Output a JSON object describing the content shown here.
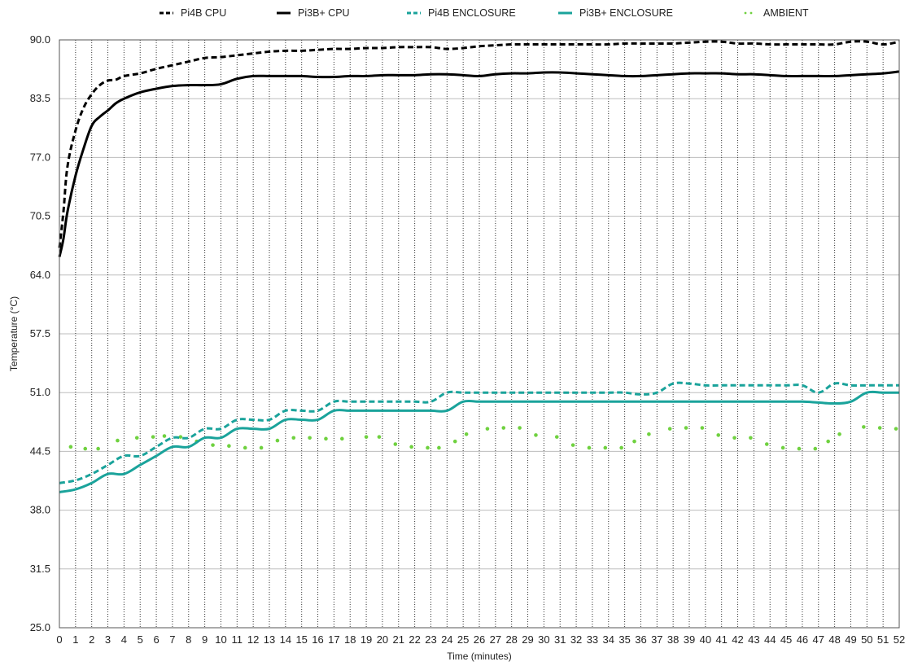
{
  "chart_data": {
    "type": "line",
    "title": "",
    "xlabel": "Time (minutes)",
    "ylabel": "Temperature (°C)",
    "xlim": [
      0,
      52
    ],
    "ylim": [
      25,
      90
    ],
    "x_ticks": [
      0,
      1,
      2,
      3,
      4,
      5,
      6,
      7,
      8,
      9,
      10,
      11,
      12,
      13,
      14,
      15,
      16,
      17,
      18,
      19,
      20,
      21,
      22,
      23,
      24,
      25,
      26,
      27,
      28,
      29,
      30,
      31,
      32,
      33,
      34,
      35,
      36,
      37,
      38,
      39,
      40,
      41,
      42,
      43,
      44,
      45,
      46,
      47,
      48,
      49,
      50,
      51,
      52
    ],
    "y_ticks": [
      "25.0",
      "31.5",
      "38.0",
      "44.5",
      "51.0",
      "57.5",
      "64.0",
      "70.5",
      "77.0",
      "83.5",
      "90.0"
    ],
    "grid": {
      "horizontal": "solid",
      "vertical": "dotted"
    },
    "legend_position": "top",
    "series": [
      {
        "name": "Pi4B CPU",
        "color": "#000000",
        "style": "dashed",
        "x": [
          0,
          0.25,
          0.5,
          1,
          1.5,
          2,
          2.5,
          3,
          3.5,
          4,
          5,
          6,
          7,
          8,
          9,
          10,
          11,
          12,
          13,
          14,
          15,
          16,
          17,
          18,
          19,
          20,
          21,
          22,
          23,
          24,
          25,
          26,
          27,
          28,
          29,
          30,
          31,
          32,
          33,
          34,
          35,
          36,
          37,
          38,
          39,
          40,
          41,
          42,
          43,
          44,
          45,
          46,
          47,
          48,
          49,
          50,
          51,
          52
        ],
        "y": [
          67,
          71,
          76,
          80,
          82.5,
          84,
          85,
          85.5,
          85.6,
          86,
          86.3,
          86.8,
          87.2,
          87.6,
          88,
          88.1,
          88.3,
          88.5,
          88.7,
          88.8,
          88.8,
          88.9,
          89,
          89,
          89.1,
          89.1,
          89.2,
          89.2,
          89.2,
          89,
          89.1,
          89.3,
          89.4,
          89.5,
          89.5,
          89.5,
          89.5,
          89.5,
          89.5,
          89.5,
          89.6,
          89.6,
          89.6,
          89.6,
          89.7,
          89.8,
          89.8,
          89.6,
          89.6,
          89.5,
          89.5,
          89.5,
          89.5,
          89.5,
          89.8,
          89.8,
          89.5,
          89.8
        ]
      },
      {
        "name": "Pi3B+ CPU",
        "color": "#000000",
        "style": "solid",
        "x": [
          0,
          0.25,
          0.5,
          1,
          1.5,
          2,
          2.5,
          3,
          3.5,
          4,
          5,
          6,
          7,
          8,
          9,
          10,
          11,
          12,
          13,
          14,
          15,
          16,
          17,
          18,
          19,
          20,
          21,
          22,
          23,
          24,
          25,
          26,
          27,
          28,
          29,
          30,
          31,
          32,
          33,
          34,
          35,
          36,
          37,
          38,
          39,
          40,
          41,
          42,
          43,
          44,
          45,
          46,
          47,
          48,
          49,
          50,
          51,
          52
        ],
        "y": [
          66,
          68,
          71,
          75,
          78,
          80.5,
          81.5,
          82.2,
          83,
          83.5,
          84.2,
          84.6,
          84.9,
          85,
          85,
          85.1,
          85.7,
          86,
          86,
          86,
          86,
          85.9,
          85.9,
          86,
          86,
          86.1,
          86.1,
          86.1,
          86.2,
          86.2,
          86.1,
          86,
          86.2,
          86.3,
          86.3,
          86.4,
          86.4,
          86.3,
          86.2,
          86.1,
          86,
          86,
          86.1,
          86.2,
          86.3,
          86.3,
          86.3,
          86.2,
          86.2,
          86.1,
          86,
          86,
          86,
          86,
          86.1,
          86.2,
          86.3,
          86.5
        ]
      },
      {
        "name": "Pi4B ENCLOSURE",
        "color": "#1aa39b",
        "style": "dashed",
        "x": [
          0,
          1,
          2,
          3,
          4,
          5,
          6,
          7,
          8,
          9,
          10,
          11,
          12,
          13,
          14,
          15,
          16,
          17,
          18,
          19,
          20,
          21,
          22,
          23,
          24,
          25,
          26,
          27,
          28,
          29,
          30,
          31,
          32,
          33,
          34,
          35,
          36,
          37,
          38,
          39,
          40,
          41,
          42,
          43,
          44,
          45,
          46,
          47,
          48,
          49,
          50,
          51,
          52
        ],
        "y": [
          41,
          41.3,
          42,
          43,
          44,
          44,
          45,
          46,
          46,
          47,
          47,
          48,
          48,
          48,
          49,
          49,
          49,
          50,
          50,
          50,
          50,
          50,
          50,
          50,
          51,
          51,
          51,
          51,
          51,
          51,
          51,
          51,
          51,
          51,
          51,
          51,
          50.8,
          51,
          52,
          52,
          51.8,
          51.8,
          51.8,
          51.8,
          51.8,
          51.8,
          51.8,
          51,
          52,
          51.8,
          51.8,
          51.8,
          51.8
        ]
      },
      {
        "name": "Pi3B+ ENCLOSURE",
        "color": "#1aa39b",
        "style": "solid",
        "x": [
          0,
          1,
          2,
          3,
          4,
          5,
          6,
          7,
          8,
          9,
          10,
          11,
          12,
          13,
          14,
          15,
          16,
          17,
          18,
          19,
          20,
          21,
          22,
          23,
          24,
          25,
          26,
          27,
          28,
          29,
          30,
          31,
          32,
          33,
          34,
          35,
          36,
          37,
          38,
          39,
          40,
          41,
          42,
          43,
          44,
          45,
          46,
          47,
          48,
          49,
          50,
          51,
          52
        ],
        "y": [
          40,
          40.3,
          41,
          42,
          42,
          43,
          44,
          45,
          45,
          46,
          46,
          47,
          47,
          47,
          48,
          48,
          48,
          49,
          49,
          49,
          49,
          49,
          49,
          49,
          49,
          50,
          50,
          50,
          50,
          50,
          50,
          50,
          50,
          50,
          50,
          50,
          50,
          50,
          50,
          50,
          50,
          50,
          50,
          50,
          50,
          50,
          50,
          49.9,
          49.8,
          50,
          51,
          51,
          51
        ]
      },
      {
        "name": "AMBIENT",
        "color": "#6fd13f",
        "style": "dotted",
        "x": [
          0.7,
          1.6,
          2.4,
          3.6,
          4.8,
          5.8,
          6.5,
          7.5,
          8.5,
          9.5,
          10.5,
          11.5,
          12.5,
          13.5,
          14.5,
          15.5,
          16.5,
          17.5,
          19,
          19.8,
          20.8,
          21.8,
          22.8,
          23.5,
          24.5,
          25.2,
          26.5,
          27.5,
          28.5,
          29.5,
          30.8,
          31.8,
          32.8,
          33.8,
          34.8,
          35.6,
          36.5,
          37.8,
          38.8,
          39.8,
          40.8,
          41.8,
          42.8,
          43.8,
          44.8,
          45.8,
          46.8,
          47.6,
          48.3,
          49.8,
          50.8,
          51.8
        ],
        "y": [
          45,
          44.8,
          44.8,
          45.7,
          46,
          46.1,
          46.2,
          46.1,
          45.6,
          45.2,
          45.1,
          44.9,
          44.9,
          45.7,
          46,
          46,
          45.9,
          45.9,
          46.1,
          46.1,
          45.3,
          45,
          44.9,
          44.9,
          45.6,
          46.4,
          47,
          47.1,
          47.1,
          46.3,
          46.1,
          45.2,
          44.9,
          44.9,
          44.9,
          45.6,
          46.4,
          47,
          47.1,
          47.1,
          46.3,
          46,
          46,
          45.3,
          44.9,
          44.8,
          44.8,
          45.6,
          46.4,
          47.2,
          47.1,
          47
        ]
      }
    ]
  }
}
